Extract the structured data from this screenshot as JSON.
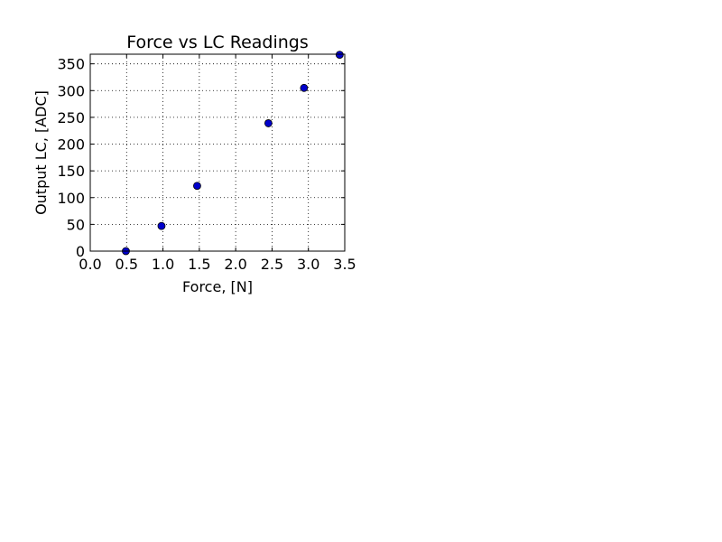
{
  "chart_data": {
    "type": "scatter",
    "title": "Force vs LC Readings",
    "xlabel": "Force, [N]",
    "ylabel": "Output LC, [ADC]",
    "xlim": [
      0.0,
      3.5
    ],
    "ylim": [
      0,
      368
    ],
    "xticks": [
      "0.0",
      "0.5",
      "1.0",
      "1.5",
      "2.0",
      "2.5",
      "3.0",
      "3.5"
    ],
    "yticks": [
      "0",
      "50",
      "100",
      "150",
      "200",
      "250",
      "300",
      "350"
    ],
    "grid": true,
    "series": [
      {
        "color": "#0000cc",
        "marker": "circle",
        "points": [
          {
            "x": 0.49,
            "y": 0
          },
          {
            "x": 0.98,
            "y": 47
          },
          {
            "x": 1.47,
            "y": 122
          },
          {
            "x": 2.45,
            "y": 239
          },
          {
            "x": 2.94,
            "y": 305
          },
          {
            "x": 3.43,
            "y": 367
          }
        ]
      }
    ]
  }
}
